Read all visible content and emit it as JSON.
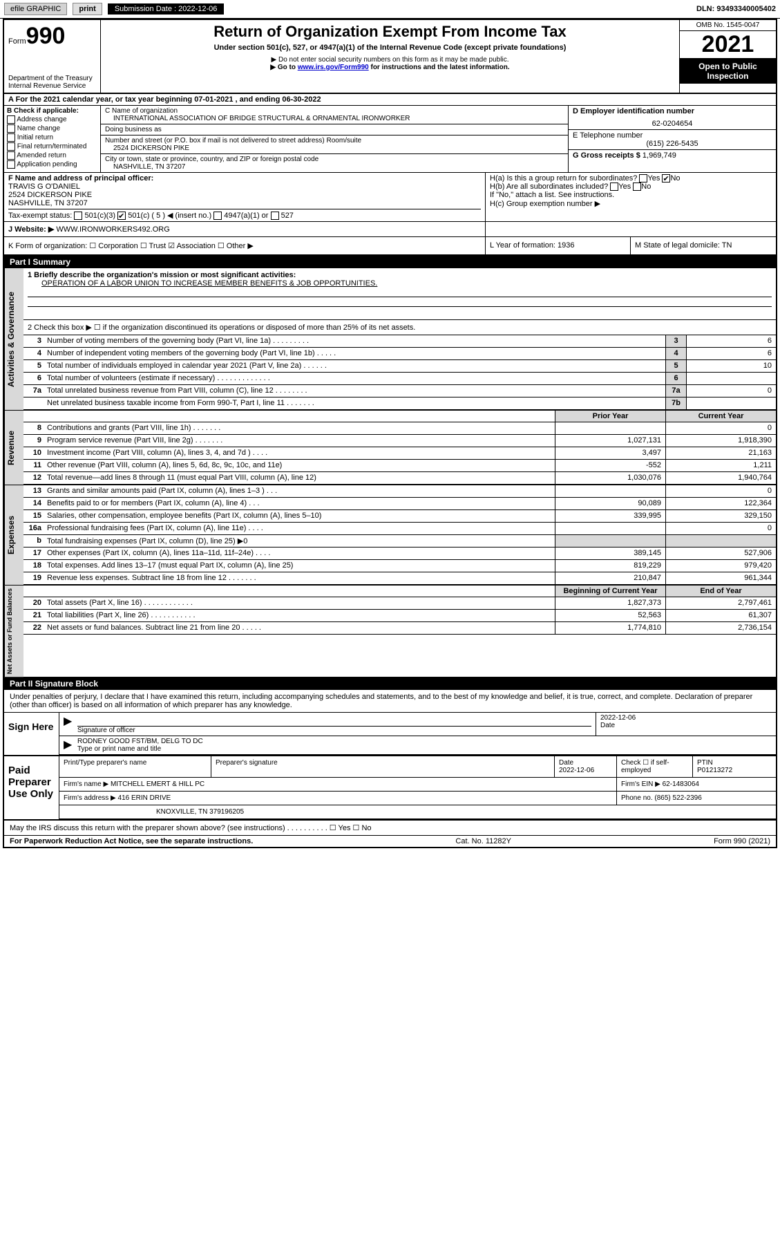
{
  "topbar": {
    "efile": "efile GRAPHIC",
    "print": "print",
    "submission_label": "Submission Date : 2022-12-06",
    "dln": "DLN: 93493340005402"
  },
  "header": {
    "form_prefix": "Form",
    "form_num": "990",
    "dept": "Department of the Treasury",
    "irs": "Internal Revenue Service",
    "title": "Return of Organization Exempt From Income Tax",
    "subtitle": "Under section 501(c), 527, or 4947(a)(1) of the Internal Revenue Code (except private foundations)",
    "warn1": "▶ Do not enter social security numbers on this form as it may be made public.",
    "warn2_pre": "▶ Go to ",
    "warn2_link": "www.irs.gov/Form990",
    "warn2_post": " for instructions and the latest information.",
    "omb": "OMB No. 1545-0047",
    "year": "2021",
    "open": "Open to Public Inspection"
  },
  "row_a": "A For the 2021 calendar year, or tax year beginning 07-01-2021  , and ending 06-30-2022",
  "col_b": {
    "title": "B Check if applicable:",
    "items": [
      "Address change",
      "Name change",
      "Initial return",
      "Final return/terminated",
      "Amended return",
      "Application pending"
    ]
  },
  "col_c": {
    "name_label": "C Name of organization",
    "name": "INTERNATIONAL ASSOCIATION OF BRIDGE STRUCTURAL & ORNAMENTAL IRONWORKER",
    "dba": "Doing business as",
    "addr_label": "Number and street (or P.O. box if mail is not delivered to street address)       Room/suite",
    "addr": "2524 DICKERSON PIKE",
    "city_label": "City or town, state or province, country, and ZIP or foreign postal code",
    "city": "NASHVILLE, TN  37207"
  },
  "col_de": {
    "d_label": "D Employer identification number",
    "d_val": "62-0204654",
    "e_label": "E Telephone number",
    "e_val": "(615) 226-5435",
    "g_label": "G Gross receipts $",
    "g_val": "1,969,749"
  },
  "fgh": {
    "f_label": "F Name and address of principal officer:",
    "f_name": "TRAVIS G O'DANIEL",
    "f_addr1": "2524 DICKERSON PIKE",
    "f_addr2": "NASHVILLE, TN  37207",
    "tax_exempt": "Tax-exempt status:",
    "ha": "H(a)  Is this a group return for subordinates?",
    "ha_no": "No",
    "hb": "H(b)  Are all subordinates included?",
    "hb_note": "If \"No,\" attach a list. See instructions.",
    "hc": "H(c)  Group exemption number ▶",
    "j_label": "J  Website: ▶",
    "j_val": "WWW.IRONWORKERS492.ORG"
  },
  "row_k": {
    "k": "K Form of organization:   ☐ Corporation  ☐ Trust  ☑ Association  ☐ Other ▶",
    "l": "L Year of formation: 1936",
    "m": "M State of legal domicile: TN"
  },
  "part1": {
    "hdr": "Part I     Summary",
    "q1_label": "1  Briefly describe the organization's mission or most significant activities:",
    "q1_val": "OPERATION OF A LABOR UNION TO INCREASE MEMBER BENEFITS & JOB OPPORTUNITIES.",
    "q2": "2   Check this box ▶ ☐  if the organization discontinued its operations or disposed of more than 25% of its net assets.",
    "lines_small": [
      {
        "n": "3",
        "d": "Number of voting members of the governing body (Part VI, line 1a)   .   .   .   .   .   .   .   .   .",
        "b": "3",
        "v": "6"
      },
      {
        "n": "4",
        "d": "Number of independent voting members of the governing body (Part VI, line 1b)   .   .   .   .   .",
        "b": "4",
        "v": "6"
      },
      {
        "n": "5",
        "d": "Total number of individuals employed in calendar year 2021 (Part V, line 2a)   .   .   .   .   .   .",
        "b": "5",
        "v": "10"
      },
      {
        "n": "6",
        "d": "Total number of volunteers (estimate if necessary)   .   .   .   .   .   .   .   .   .   .   .   .   .",
        "b": "6",
        "v": ""
      },
      {
        "n": "7a",
        "d": "Total unrelated business revenue from Part VIII, column (C), line 12   .   .   .   .   .   .   .   .",
        "b": "7a",
        "v": "0"
      },
      {
        "n": "",
        "d": "Net unrelated business taxable income from Form 990-T, Part I, line 11   .   .   .   .   .   .   .",
        "b": "7b",
        "v": ""
      }
    ]
  },
  "twocol_hdr": {
    "prior": "Prior Year",
    "curr": "Current Year"
  },
  "revenue": {
    "label": "Revenue",
    "rows": [
      {
        "n": "8",
        "d": "Contributions and grants (Part VIII, line 1h)   .   .   .   .   .   .   .",
        "p": "",
        "c": "0"
      },
      {
        "n": "9",
        "d": "Program service revenue (Part VIII, line 2g)   .   .   .   .   .   .   .",
        "p": "1,027,131",
        "c": "1,918,390"
      },
      {
        "n": "10",
        "d": "Investment income (Part VIII, column (A), lines 3, 4, and 7d )   .   .   .   .",
        "p": "3,497",
        "c": "21,163"
      },
      {
        "n": "11",
        "d": "Other revenue (Part VIII, column (A), lines 5, 6d, 8c, 9c, 10c, and 11e)",
        "p": "-552",
        "c": "1,211"
      },
      {
        "n": "12",
        "d": "Total revenue—add lines 8 through 11 (must equal Part VIII, column (A), line 12)",
        "p": "1,030,076",
        "c": "1,940,764"
      }
    ]
  },
  "expenses": {
    "label": "Expenses",
    "rows": [
      {
        "n": "13",
        "d": "Grants and similar amounts paid (Part IX, column (A), lines 1–3 )   .   .   .",
        "p": "",
        "c": "0"
      },
      {
        "n": "14",
        "d": "Benefits paid to or for members (Part IX, column (A), line 4)   .   .   .",
        "p": "90,089",
        "c": "122,364"
      },
      {
        "n": "15",
        "d": "Salaries, other compensation, employee benefits (Part IX, column (A), lines 5–10)",
        "p": "339,995",
        "c": "329,150"
      },
      {
        "n": "16a",
        "d": "Professional fundraising fees (Part IX, column (A), line 11e)   .   .   .   .",
        "p": "",
        "c": "0"
      },
      {
        "n": "b",
        "d": "Total fundraising expenses (Part IX, column (D), line 25) ▶0",
        "p": "shade",
        "c": "shade"
      },
      {
        "n": "17",
        "d": "Other expenses (Part IX, column (A), lines 11a–11d, 11f–24e)   .   .   .   .",
        "p": "389,145",
        "c": "527,906"
      },
      {
        "n": "18",
        "d": "Total expenses. Add lines 13–17 (must equal Part IX, column (A), line 25)",
        "p": "819,229",
        "c": "979,420"
      },
      {
        "n": "19",
        "d": "Revenue less expenses. Subtract line 18 from line 12   .   .   .   .   .   .   .",
        "p": "210,847",
        "c": "961,344"
      }
    ]
  },
  "netassets": {
    "label": "Net Assets or Fund Balances",
    "hdr_p": "Beginning of Current Year",
    "hdr_c": "End of Year",
    "rows": [
      {
        "n": "20",
        "d": "Total assets (Part X, line 16)   .   .   .   .   .   .   .   .   .   .   .   .",
        "p": "1,827,373",
        "c": "2,797,461"
      },
      {
        "n": "21",
        "d": "Total liabilities (Part X, line 26)   .   .   .   .   .   .   .   .   .   .   .",
        "p": "52,563",
        "c": "61,307"
      },
      {
        "n": "22",
        "d": "Net assets or fund balances. Subtract line 21 from line 20   .   .   .   .   .",
        "p": "1,774,810",
        "c": "2,736,154"
      }
    ]
  },
  "part2": {
    "hdr": "Part II     Signature Block",
    "intro": "Under penalties of perjury, I declare that I have examined this return, including accompanying schedules and statements, and to the best of my knowledge and belief, it is true, correct, and complete. Declaration of preparer (other than officer) is based on all information of which preparer has any knowledge."
  },
  "sign": {
    "lbl": "Sign Here",
    "sig_of": "Signature of officer",
    "date": "2022-12-06",
    "date_lbl": "Date",
    "name": "RODNEY GOOD  FST/BM, DELG TO DC",
    "name_lbl": "Type or print name and title"
  },
  "prep": {
    "lbl": "Paid Preparer Use Only",
    "r1": {
      "c1": "Print/Type preparer's name",
      "c2": "Preparer's signature",
      "c3": "Date",
      "c3v": "2022-12-06",
      "c4": "Check ☐ if self-employed",
      "c5": "PTIN",
      "c5v": "P01213272"
    },
    "r2": {
      "c1": "Firm's name     ▶",
      "c1v": "MITCHELL EMERT & HILL PC",
      "c2": "Firm's EIN ▶",
      "c2v": "62-1483064"
    },
    "r3": {
      "c1": "Firm's address ▶",
      "c1v": "416 ERIN DRIVE",
      "c2": "Phone no.",
      "c2v": "(865) 522-2396"
    },
    "r3b": "KNOXVILLE, TN  379196205"
  },
  "may_irs": "May the IRS discuss this return with the preparer shown above? (see instructions)   .   .   .   .   .   .   .   .   .   .         ☐ Yes  ☐ No",
  "foot": {
    "l": "For Paperwork Reduction Act Notice, see the separate instructions.",
    "m": "Cat. No. 11282Y",
    "r": "Form 990 (2021)"
  },
  "vtab_gov": "Activities & Governance"
}
